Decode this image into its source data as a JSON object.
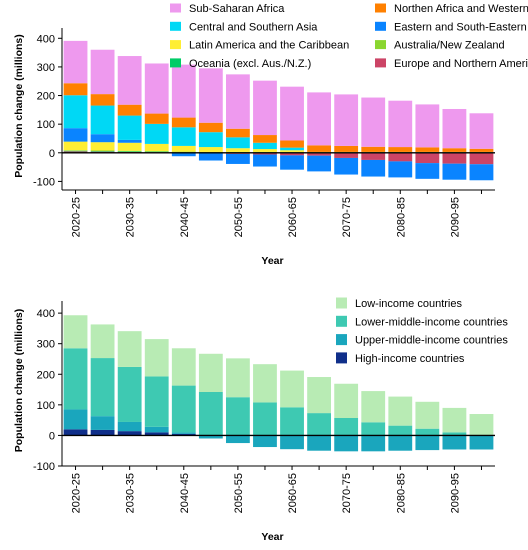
{
  "chart_data": [
    {
      "type": "bar",
      "stacked": true,
      "categories": [
        "2020-25",
        "2025-30",
        "2030-35",
        "2035-40",
        "2040-45",
        "2045-50",
        "2050-55",
        "2055-60",
        "2060-65",
        "2065-70",
        "2070-75",
        "2075-80",
        "2080-85",
        "2085-90",
        "2090-95",
        "2095-100"
      ],
      "tick_labels": [
        "2020-25",
        "",
        "2030-35",
        "",
        "2040-45",
        "",
        "2050-55",
        "",
        "2060-65",
        "",
        "2070-75",
        "",
        "2080-85",
        "",
        "2090-95",
        ""
      ],
      "xlabel": "Year",
      "ylabel": "Population change (millions)",
      "ylim": [
        -130,
        415
      ],
      "yticks": [
        -100,
        0,
        100,
        200,
        300,
        400
      ],
      "legend_position": "top-right",
      "series": [
        {
          "name": "Sub-Saharan Africa",
          "color": "#ee99ee",
          "values": [
            148,
            155,
            170,
            175,
            185,
            190,
            190,
            190,
            188,
            185,
            180,
            172,
            162,
            150,
            137,
            124
          ]
        },
        {
          "name": "Northen Africa and Western Asia",
          "color": "#ff8000",
          "values": [
            42,
            40,
            38,
            36,
            34,
            33,
            30,
            27,
            25,
            23,
            21,
            18,
            17,
            16,
            13,
            11
          ]
        },
        {
          "name": "Central and Southern Asia",
          "color": "#00d8f5",
          "values": [
            115,
            100,
            85,
            70,
            65,
            52,
            38,
            22,
            9,
            0,
            0,
            0,
            0,
            0,
            0,
            0
          ]
        },
        {
          "name": "Eastern and South-Eastern Asia",
          "color": "#0a84ff",
          "values": [
            47,
            28,
            10,
            0,
            -10,
            -25,
            -35,
            -42,
            -50,
            -55,
            -58,
            -58,
            -56,
            -55,
            -56,
            -56
          ]
        },
        {
          "name": "Latin America and the Caribbean",
          "color": "#ffee33",
          "values": [
            30,
            29,
            28,
            25,
            20,
            17,
            13,
            10,
            6,
            0,
            0,
            0,
            0,
            0,
            0,
            0
          ]
        },
        {
          "name": "Australia/New Zealand",
          "color": "#8ad630",
          "values": [
            2,
            2,
            2,
            2,
            2,
            1,
            1,
            1,
            1,
            1,
            1,
            1,
            1,
            1,
            1,
            1
          ]
        },
        {
          "name": "Oceania (excl. Aus./N.Z.)",
          "color": "#00cc66",
          "values": [
            2,
            2,
            2,
            2,
            2,
            2,
            2,
            2,
            2,
            2,
            2,
            2,
            2,
            2,
            2,
            2
          ]
        },
        {
          "name": "Europe and Northern America",
          "color": "#cc4466",
          "values": [
            5,
            4,
            3,
            2,
            -2,
            -2,
            -4,
            -6,
            -9,
            -10,
            -18,
            -25,
            -30,
            -36,
            -38,
            -40
          ]
        }
      ]
    },
    {
      "type": "bar",
      "stacked": true,
      "categories": [
        "2020-25",
        "2025-30",
        "2030-35",
        "2035-40",
        "2040-45",
        "2045-50",
        "2050-55",
        "2055-60",
        "2060-65",
        "2065-70",
        "2070-75",
        "2075-80",
        "2080-85",
        "2085-90",
        "2090-95",
        "2095-100"
      ],
      "tick_labels": [
        "2020-25",
        "",
        "2030-35",
        "",
        "2040-45",
        "",
        "2050-55",
        "",
        "2060-65",
        "",
        "2070-75",
        "",
        "2080-85",
        "",
        "2090-95",
        ""
      ],
      "xlabel": "Year",
      "ylabel": "Population change (millions)",
      "ylim": [
        -100,
        420
      ],
      "yticks": [
        -100,
        0,
        100,
        200,
        300,
        400
      ],
      "legend_position": "top-right",
      "series": [
        {
          "name": "Low-income countries",
          "color": "#b8ebb4",
          "values": [
            108,
            110,
            117,
            122,
            122,
            125,
            127,
            125,
            120,
            118,
            112,
            102,
            95,
            88,
            80,
            70
          ]
        },
        {
          "name": "Lower-middle-income countries",
          "color": "#3ec9b2",
          "values": [
            200,
            190,
            180,
            165,
            153,
            142,
            125,
            108,
            92,
            73,
            57,
            43,
            32,
            22,
            10,
            0
          ]
        },
        {
          "name": "Upper-middle-income countries",
          "color": "#1aa6bd",
          "values": [
            65,
            45,
            30,
            18,
            5,
            -10,
            -25,
            -38,
            -45,
            -50,
            -52,
            -52,
            -50,
            -48,
            -46,
            -46
          ]
        },
        {
          "name": "High-income countries",
          "color": "#102f8a",
          "values": [
            20,
            18,
            14,
            10,
            5,
            0,
            0,
            0,
            0,
            0,
            0,
            0,
            0,
            0,
            0,
            0
          ]
        }
      ]
    }
  ]
}
